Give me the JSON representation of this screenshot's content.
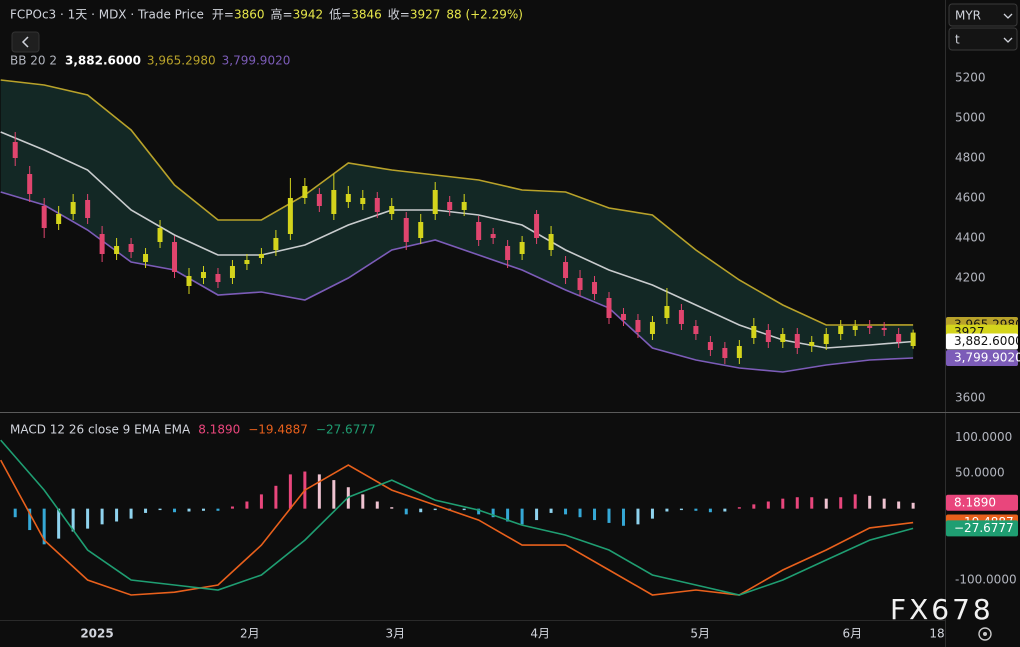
{
  "toolbar": {
    "currency": "MYR",
    "unit": "t"
  },
  "watermark": "FX678",
  "chart_data": [
    {
      "type": "candlestick",
      "title": "FCPOc3 · 1天 · MDX · Trade Price",
      "ohlc_legend": [
        {
          "label": "开=",
          "value": 3860
        },
        {
          "label": "高=",
          "value": 3942
        },
        {
          "label": "低=",
          "value": 3846
        },
        {
          "label": "收=",
          "value": 3927
        }
      ],
      "change": "88 (+2.29%)",
      "up_color": "#d4d41c",
      "down_color": "#e0456e",
      "x": [
        1,
        3,
        5,
        7,
        9,
        11,
        13,
        15,
        17,
        19,
        21,
        23,
        25,
        27,
        29,
        31,
        33,
        35,
        37,
        39,
        41,
        43,
        45,
        47,
        49,
        51,
        53,
        55,
        57,
        59,
        61,
        63,
        65,
        67,
        69,
        71,
        73,
        75,
        77,
        79,
        81,
        83,
        85,
        87,
        89,
        91,
        93,
        95,
        97,
        99,
        101,
        103,
        105,
        107,
        109,
        111,
        113,
        115,
        117,
        119,
        121,
        123,
        125
      ],
      "open": [
        4880,
        4720,
        4560,
        4470,
        4520,
        4590,
        4420,
        4320,
        4370,
        4280,
        4380,
        4380,
        4160,
        4200,
        4220,
        4200,
        4270,
        4300,
        4340,
        4420,
        4600,
        4620,
        4520,
        4580,
        4570,
        4600,
        4520,
        4500,
        4400,
        4520,
        4580,
        4540,
        4480,
        4420,
        4360,
        4320,
        4520,
        4340,
        4280,
        4200,
        4180,
        4100,
        4020,
        3990,
        3920,
        4000,
        4040,
        3960,
        3880,
        3850,
        3800,
        3900,
        3940,
        3880,
        3920,
        3860,
        3870,
        3920,
        3940,
        3960,
        3950,
        3920,
        3860
      ],
      "high": [
        4930,
        4760,
        4600,
        4560,
        4620,
        4620,
        4460,
        4400,
        4400,
        4350,
        4490,
        4410,
        4250,
        4260,
        4250,
        4290,
        4320,
        4350,
        4440,
        4700,
        4700,
        4650,
        4720,
        4660,
        4640,
        4630,
        4600,
        4530,
        4520,
        4680,
        4610,
        4620,
        4510,
        4450,
        4390,
        4410,
        4540,
        4460,
        4310,
        4240,
        4210,
        4130,
        4050,
        4020,
        4010,
        4150,
        4070,
        3990,
        3910,
        3880,
        3890,
        4000,
        3970,
        3950,
        3950,
        3910,
        3950,
        3990,
        3990,
        3990,
        3980,
        3950,
        3942
      ],
      "low": [
        4760,
        4580,
        4400,
        4440,
        4490,
        4470,
        4280,
        4290,
        4300,
        4250,
        4350,
        4200,
        4120,
        4170,
        4150,
        4170,
        4240,
        4270,
        4310,
        4390,
        4570,
        4530,
        4490,
        4550,
        4540,
        4500,
        4490,
        4340,
        4370,
        4490,
        4510,
        4510,
        4360,
        4370,
        4250,
        4290,
        4370,
        4310,
        4170,
        4110,
        4090,
        3970,
        3960,
        3900,
        3890,
        3970,
        3940,
        3890,
        3810,
        3770,
        3770,
        3870,
        3850,
        3850,
        3820,
        3830,
        3840,
        3890,
        3910,
        3920,
        3910,
        3850,
        3846
      ],
      "close": [
        4800,
        4620,
        4450,
        4520,
        4580,
        4500,
        4320,
        4360,
        4330,
        4320,
        4450,
        4230,
        4210,
        4230,
        4180,
        4260,
        4290,
        4320,
        4400,
        4600,
        4660,
        4560,
        4640,
        4620,
        4600,
        4530,
        4560,
        4380,
        4480,
        4640,
        4540,
        4580,
        4390,
        4400,
        4290,
        4380,
        4400,
        4420,
        4200,
        4140,
        4120,
        4000,
        3990,
        3930,
        3980,
        4060,
        3970,
        3920,
        3840,
        3800,
        3860,
        3960,
        3880,
        3920,
        3850,
        3880,
        3920,
        3960,
        3960,
        3950,
        3940,
        3880,
        3927
      ],
      "bands": {
        "name": "BB 20 2",
        "fill": "#16322e",
        "x": [
          -1,
          5,
          11,
          17,
          23,
          29,
          35,
          41,
          47,
          53,
          59,
          65,
          71,
          77,
          83,
          89,
          95,
          101,
          107,
          113,
          119,
          125
        ],
        "series": [
          {
            "color": "#c9ccce",
            "legend_value": "3,882.6000",
            "values": [
              4930,
              4840,
              4740,
              4540,
              4415,
              4315,
              4315,
              4365,
              4465,
              4540,
              4540,
              4515,
              4465,
              4340,
              4240,
              4165,
              4065,
              3965,
              3890,
              3850,
              3865,
              3882.6
            ]
          },
          {
            "color": "#b8a22a",
            "legend_value": "3,965.2980",
            "values": [
              5190,
              5165,
              5115,
              4940,
              4665,
              4490,
              4490,
              4615,
              4775,
              4740,
              4715,
              4690,
              4640,
              4630,
              4550,
              4515,
              4340,
              4190,
              4065,
              3965,
              3965,
              3965.298
            ]
          },
          {
            "color": "#7c5cb8",
            "legend_value": "3,799.9020",
            "values": [
              4630,
              4565,
              4440,
              4280,
              4240,
              4115,
              4130,
              4090,
              4200,
              4340,
              4390,
              4315,
              4240,
              4140,
              4050,
              3850,
              3790,
              3750,
              3730,
              3765,
              3790,
              3799.902
            ]
          }
        ]
      },
      "xlim": [
        -1.1,
        129.4
      ],
      "ylim": [
        3530,
        5590
      ],
      "yticks": [
        3600,
        4200,
        4400,
        4600,
        4800,
        5000,
        5200
      ],
      "grid": false
    },
    {
      "type": "macd",
      "title": "MACD 12 26 close 9 EMA EMA",
      "histogram": {
        "legend_value": "8.1890",
        "positive_color": "#e9467c",
        "positive_falling_color": "#efc3d1",
        "negative_color": "#35a8d6",
        "negative_rising_color": "#8fd3ee",
        "x": [
          1,
          3,
          5,
          7,
          9,
          11,
          13,
          15,
          17,
          19,
          21,
          23,
          25,
          27,
          29,
          31,
          33,
          35,
          37,
          39,
          41,
          43,
          45,
          47,
          49,
          51,
          53,
          55,
          57,
          59,
          61,
          63,
          65,
          67,
          69,
          71,
          73,
          75,
          77,
          79,
          81,
          83,
          85,
          87,
          89,
          91,
          93,
          95,
          97,
          99,
          101,
          103,
          105,
          107,
          109,
          111,
          113,
          115,
          117,
          119,
          121,
          123,
          125
        ],
        "values": [
          -12,
          -30,
          -50,
          -42,
          -32,
          -28,
          -22,
          -18,
          -14,
          -6,
          -2,
          -5,
          -4,
          -3,
          -3,
          3,
          10,
          20,
          32,
          48,
          52,
          48,
          40,
          30,
          20,
          10,
          2,
          -8,
          -5,
          -2,
          -3,
          -2,
          -8,
          -12,
          -18,
          -22,
          -16,
          -6,
          -8,
          -12,
          -16,
          -20,
          -24,
          -22,
          -14,
          -4,
          -2,
          -3,
          -5,
          -4,
          2,
          6,
          10,
          14,
          16,
          16,
          14,
          16,
          20,
          18,
          14,
          10,
          8.189
        ]
      },
      "lines": {
        "x": [
          -1,
          5,
          11,
          17,
          23,
          29,
          35,
          41,
          47,
          53,
          59,
          65,
          71,
          77,
          83,
          89,
          95,
          101,
          107,
          113,
          119,
          125
        ],
        "series": [
          {
            "color": "#e8601c",
            "legend_value": "−19.4887",
            "values": [
              68,
              -44,
              -100,
              -121,
              -117,
              -107,
              -51,
              26,
              61,
              26,
              5,
              -16,
              -51,
              -51,
              -86,
              -121,
              -114,
              -121,
              -86,
              -58,
              -27,
              -19.4887
            ]
          },
          {
            "color": "#1f9e72",
            "legend_value": "−27.6777",
            "values": [
              96,
              26,
              -58,
              -100,
              -107,
              -114,
              -93,
              -44,
              16,
              40,
              12,
              -2,
              -23,
              -37,
              -58,
              -93,
              -107,
              -121,
              -100,
              -72,
              -44,
              -27.6777
            ]
          }
        ]
      },
      "xlim": [
        -1.1,
        129.4
      ],
      "xticks": [
        {
          "value": 12.3,
          "label": "2025"
        },
        {
          "value": 33.4,
          "label": "2月"
        },
        {
          "value": 53.5,
          "label": "3月"
        },
        {
          "value": 73.5,
          "label": "4月"
        },
        {
          "value": 95.6,
          "label": "5月"
        },
        {
          "value": 116.6,
          "label": "6月"
        },
        {
          "value": 128.3,
          "label": "18"
        }
      ],
      "ylim": [
        -156,
        134
      ],
      "yticks": [
        {
          "value": 100,
          "label": "100.0000"
        },
        {
          "value": 50,
          "label": "50.0000"
        },
        {
          "value": -100,
          "label": "-100.0000"
        }
      ],
      "grid": false
    }
  ]
}
